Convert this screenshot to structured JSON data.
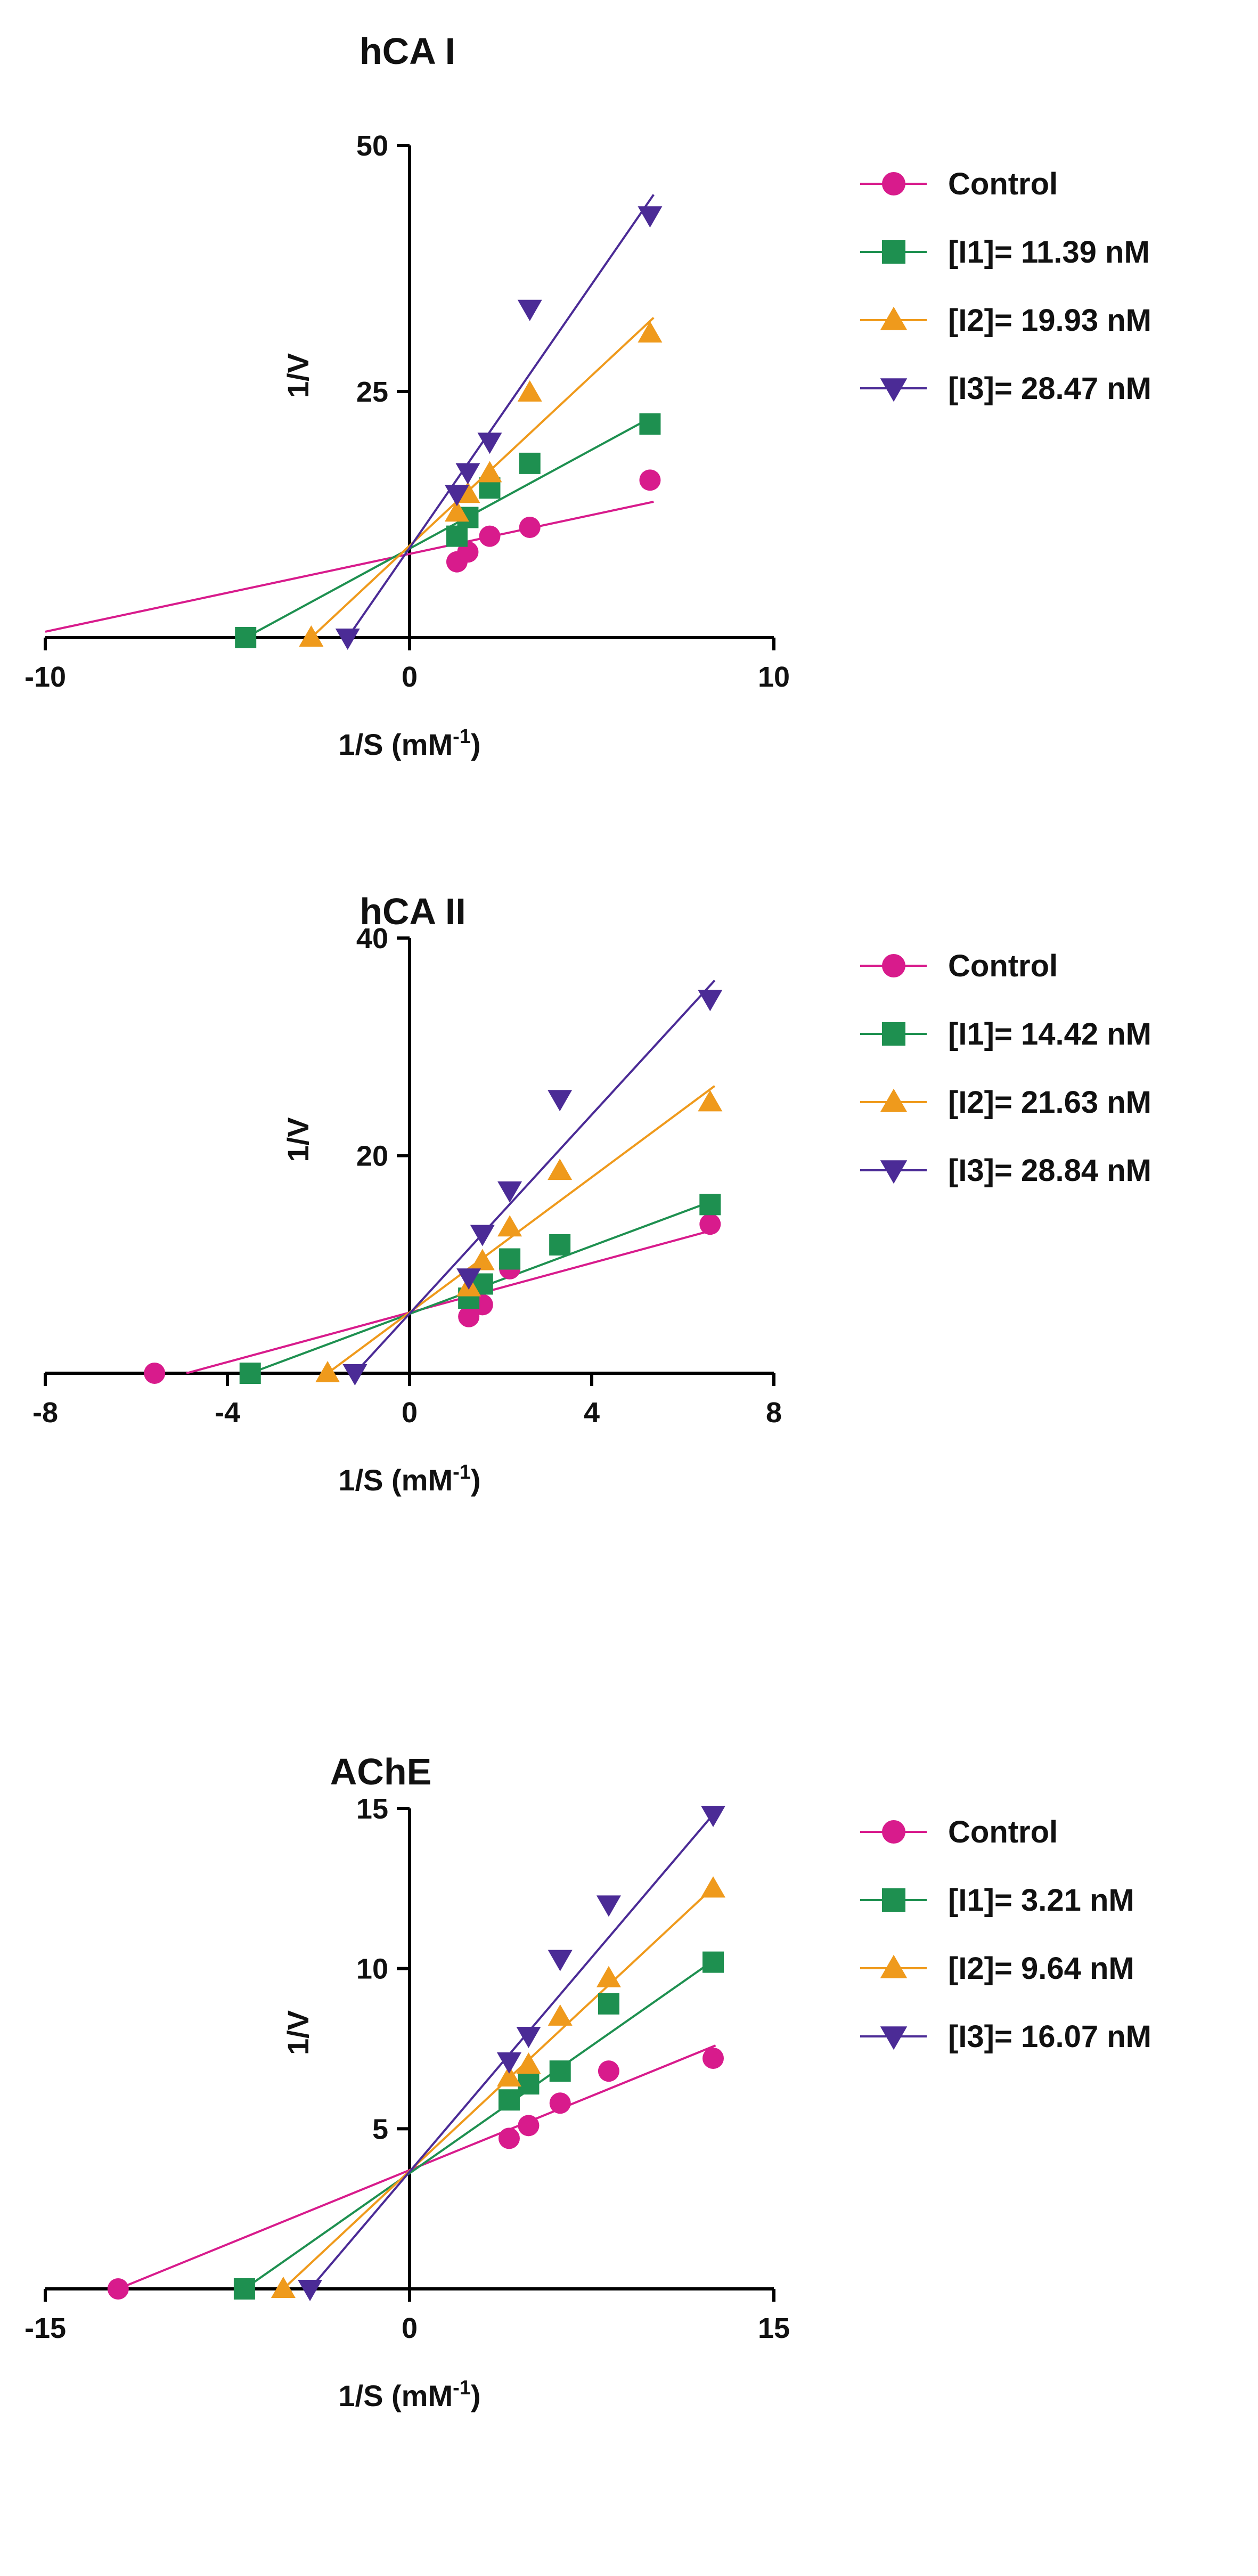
{
  "chart_data": [
    {
      "type": "scatter",
      "title": "hCA I",
      "xlabel": "1/S (mM",
      "xlabel_sup": "-1",
      "xlabel_end": ")",
      "ylabel": "1/V",
      "xlim": [
        -10,
        10
      ],
      "ylim": [
        0,
        50
      ],
      "x_ticks": [
        -10,
        0,
        10
      ],
      "y_ticks": [
        25,
        50
      ],
      "line_x_start": -10,
      "series": [
        {
          "name": "Control",
          "color": "#d81b8c",
          "marker": "circle",
          "x": [
            1.3,
            1.6,
            2.2,
            3.3,
            6.6
          ],
          "y": [
            7.7,
            8.7,
            10.3,
            11.2,
            16.0
          ],
          "fit": {
            "x0": -10,
            "y0": 0.6,
            "x1": 6.7,
            "y1": 13.8
          }
        },
        {
          "name": "[I1]= 11.39 nM",
          "color": "#1e9050",
          "marker": "square",
          "x": [
            -4.5,
            1.3,
            1.6,
            2.2,
            3.3,
            6.6
          ],
          "y": [
            0,
            10.3,
            12.2,
            15.2,
            17.7,
            21.7
          ],
          "fit": {
            "x0": -4.5,
            "y0": 0,
            "x1": 6.7,
            "y1": 22.5
          }
        },
        {
          "name": "[I2]= 19.93 nM",
          "color": "#ef9a1c",
          "marker": "triangle-up",
          "x": [
            -2.7,
            1.3,
            1.6,
            2.2,
            3.3,
            6.6
          ],
          "y": [
            0,
            12.7,
            14.6,
            16.7,
            24.9,
            30.9
          ],
          "fit": {
            "x0": -2.7,
            "y0": 0,
            "x1": 6.7,
            "y1": 32.5
          }
        },
        {
          "name": "[I3]= 28.47 nM",
          "color": "#4b2b96",
          "marker": "triangle-down",
          "x": [
            -1.7,
            1.3,
            1.6,
            2.2,
            3.3,
            6.6
          ],
          "y": [
            0,
            14.6,
            16.8,
            19.9,
            33.4,
            42.9
          ],
          "fit": {
            "x0": -1.7,
            "y0": 0,
            "x1": 6.7,
            "y1": 45.0
          }
        }
      ]
    },
    {
      "type": "scatter",
      "title": "hCA II",
      "xlabel": "1/S (mM",
      "xlabel_sup": "-1",
      "xlabel_end": ")",
      "ylabel": "1/V",
      "xlim": [
        -8,
        8
      ],
      "ylim": [
        0,
        40
      ],
      "x_ticks": [
        -8,
        -4,
        0,
        4,
        8
      ],
      "y_ticks": [
        20,
        40
      ],
      "series": [
        {
          "name": "Control",
          "color": "#d81b8c",
          "marker": "circle",
          "x": [
            -5.6,
            1.3,
            1.6,
            2.2,
            6.6
          ],
          "y": [
            0,
            5.2,
            6.3,
            9.6,
            13.7
          ],
          "fit": {
            "x0": -4.9,
            "y0": 0,
            "x1": 6.7,
            "y1": 13.2
          }
        },
        {
          "name": "[I1]= 14.42 nM",
          "color": "#1e9050",
          "marker": "square",
          "x": [
            -3.5,
            1.3,
            1.6,
            2.2,
            3.3,
            6.6
          ],
          "y": [
            0,
            6.9,
            8.2,
            10.5,
            11.8,
            15.5
          ],
          "fit": {
            "x0": -3.5,
            "y0": 0,
            "x1": 6.7,
            "y1": 15.9
          }
        },
        {
          "name": "[I2]= 21.63 nM",
          "color": "#ef9a1c",
          "marker": "triangle-up",
          "x": [
            -1.8,
            1.3,
            1.6,
            2.2,
            3.3,
            6.6
          ],
          "y": [
            0,
            7.9,
            10.3,
            13.4,
            18.6,
            24.9
          ],
          "fit": {
            "x0": -1.8,
            "y0": 0,
            "x1": 6.7,
            "y1": 26.4
          }
        },
        {
          "name": "[I3]= 28.84 nM",
          "color": "#4b2b96",
          "marker": "triangle-down",
          "x": [
            -1.2,
            1.3,
            1.6,
            2.2,
            3.3,
            6.6
          ],
          "y": [
            0,
            8.8,
            12.8,
            16.8,
            25.2,
            34.4
          ],
          "fit": {
            "x0": -1.2,
            "y0": 0,
            "x1": 6.7,
            "y1": 36.1
          }
        }
      ]
    },
    {
      "type": "scatter",
      "title": "AChE",
      "xlabel": "1/S (mM",
      "xlabel_sup": "-1",
      "xlabel_end": ")",
      "ylabel": "1/V",
      "xlim": [
        -15,
        15
      ],
      "ylim": [
        0,
        15
      ],
      "x_ticks": [
        -15,
        0,
        15
      ],
      "y_ticks": [
        5,
        10,
        15
      ],
      "series": [
        {
          "name": "Control",
          "color": "#d81b8c",
          "marker": "circle",
          "x": [
            -12,
            4.1,
            4.9,
            6.2,
            8.2,
            12.5
          ],
          "y": [
            0,
            4.7,
            5.1,
            5.8,
            6.8,
            7.2
          ],
          "fit": {
            "x0": -12,
            "y0": 0,
            "x1": 12.6,
            "y1": 7.6
          }
        },
        {
          "name": "[I1]= 3.21 nM",
          "color": "#1e9050",
          "marker": "square",
          "x": [
            -6.8,
            4.1,
            4.9,
            6.2,
            8.2,
            12.5
          ],
          "y": [
            0,
            5.9,
            6.4,
            6.8,
            8.9,
            10.2
          ],
          "fit": {
            "x0": -6.8,
            "y0": 0,
            "x1": 12.6,
            "y1": 10.3
          }
        },
        {
          "name": "[I2]= 9.64 nM",
          "color": "#ef9a1c",
          "marker": "triangle-up",
          "x": [
            -5.2,
            4.1,
            4.9,
            6.2,
            8.2,
            12.5
          ],
          "y": [
            0,
            6.6,
            7.0,
            8.5,
            9.7,
            12.5
          ],
          "fit": {
            "x0": -5.2,
            "y0": 0,
            "x1": 12.6,
            "y1": 12.6
          }
        },
        {
          "name": "[I3]= 16.07 nM",
          "color": "#4b2b96",
          "marker": "triangle-down",
          "x": [
            -4.1,
            4.1,
            4.9,
            6.2,
            8.2,
            12.5
          ],
          "y": [
            0,
            7.1,
            7.9,
            10.3,
            12.0,
            14.8
          ],
          "fit": {
            "x0": -4.1,
            "y0": 0,
            "x1": 12.6,
            "y1": 14.9
          }
        }
      ]
    }
  ]
}
